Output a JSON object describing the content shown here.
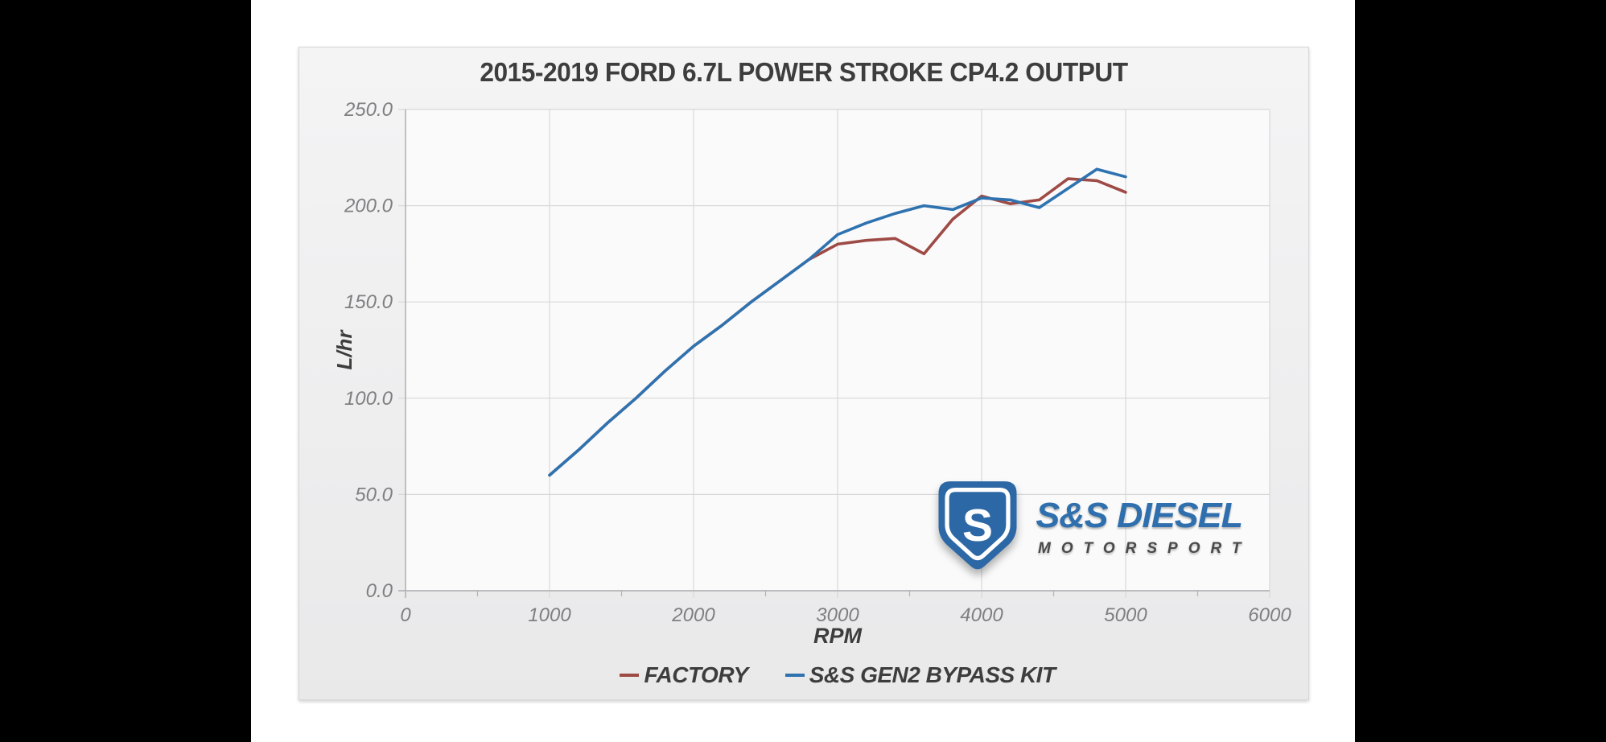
{
  "page": {
    "background_color": "#000000"
  },
  "chart_data": {
    "type": "line",
    "title": "2015-2019 FORD 6.7L POWER STROKE CP4.2 OUTPUT",
    "xlabel": "RPM",
    "ylabel": "L/hr",
    "xlim": [
      0,
      6000
    ],
    "ylim": [
      0,
      250
    ],
    "x_ticks": [
      0,
      1000,
      2000,
      3000,
      4000,
      5000,
      6000
    ],
    "x_minor_tick_step": 500,
    "y_ticks": [
      0,
      50,
      100,
      150,
      200,
      250
    ],
    "y_tick_decimals": 1,
    "grid": true,
    "legend_position": "bottom",
    "x": [
      1000,
      1200,
      1400,
      1600,
      1800,
      2000,
      2200,
      2400,
      2600,
      2800,
      3000,
      3200,
      3400,
      3600,
      3800,
      4000,
      4200,
      4400,
      4600,
      4800,
      5000
    ],
    "series": [
      {
        "name": "FACTORY",
        "color": "#9e4a45",
        "values": [
          60,
          73,
          87,
          100,
          114,
          127,
          138,
          150,
          161,
          172,
          180,
          182,
          183,
          175,
          193,
          205,
          201,
          203,
          214,
          213,
          207
        ]
      },
      {
        "name": "S&S GEN2 BYPASS KIT",
        "color": "#2e72b0",
        "values": [
          60,
          73,
          87,
          100,
          114,
          127,
          138,
          150,
          161,
          172,
          185,
          191,
          196,
          200,
          198,
          204,
          203,
          199,
          209,
          219,
          215
        ]
      }
    ]
  },
  "logo": {
    "monogram": "S",
    "line1": "S&S DIESEL",
    "line2": "MOTORSPORT",
    "shield_color": "#2d68a6",
    "text_color": "#2f6fae"
  }
}
